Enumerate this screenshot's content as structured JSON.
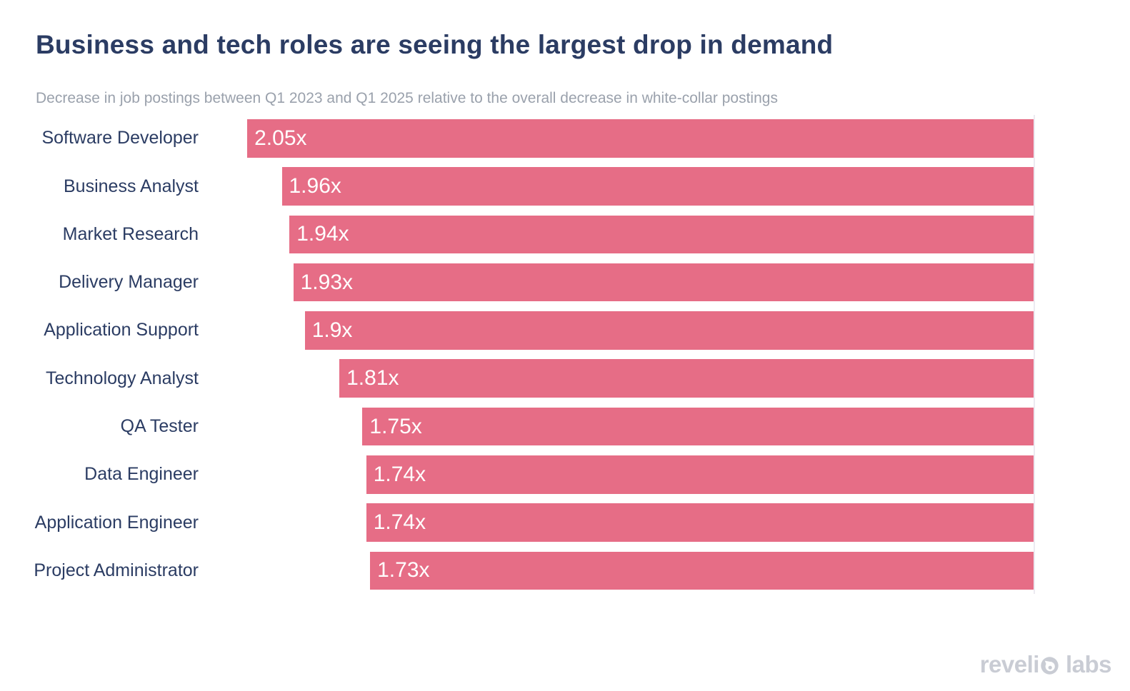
{
  "header": {
    "title": "Business and tech roles are seeing the largest drop in demand",
    "subtitle": "Decrease in job postings between Q1 2023 and Q1 2025 relative to the overall decrease in white-collar postings"
  },
  "chart_data": {
    "type": "bar",
    "orientation": "horizontal",
    "bars_anchored": "right",
    "title": "Business and tech roles are seeing the largest drop in demand",
    "subtitle": "Decrease in job postings between Q1 2023 and Q1 2025 relative to the overall decrease in white-collar postings",
    "categories": [
      "Software Developer",
      "Business Analyst",
      "Market Research",
      "Delivery Manager",
      "Application Support",
      "Technology Analyst",
      "QA Tester",
      "Data Engineer",
      "Application Engineer",
      "Project Administrator"
    ],
    "values": [
      2.05,
      1.96,
      1.94,
      1.93,
      1.9,
      1.81,
      1.75,
      1.74,
      1.74,
      1.73
    ],
    "value_labels": [
      "2.05x",
      "1.96x",
      "1.94x",
      "1.93x",
      "1.9x",
      "1.81x",
      "1.75x",
      "1.74x",
      "1.74x",
      "1.73x"
    ],
    "xlim": [
      0,
      2.18
    ],
    "grid": false,
    "legend": false,
    "value_labels_position": "inside-left-end-of-bar",
    "bar_color": "#e66d86",
    "value_label_color": "#ffffff",
    "category_label_color": "#2b3c63"
  },
  "branding": {
    "logo_full": "revelio labs",
    "logo_part1": "reveli",
    "logo_o_icon": "droplet-in-circle",
    "logo_part2": "labs",
    "color": "#c9ccd4"
  },
  "colors": {
    "background": "#ffffff",
    "title": "#2b3c63",
    "subtitle": "#9aa1ac",
    "bar": "#e66d86",
    "axis_line": "#eceaf1"
  }
}
